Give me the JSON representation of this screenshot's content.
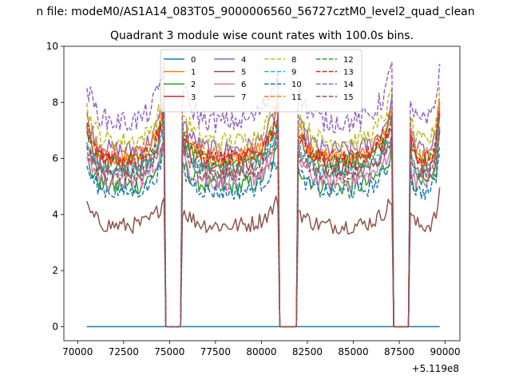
{
  "chart_data": {
    "type": "line",
    "suptitle": "n file: modeM0/AS1A14_083T05_9000006560_56727cztM0_level2_quad_clean",
    "title": "Quadrant 3 module wise count rates with 100.0s bins.",
    "xlabel": "",
    "ylabel": "",
    "x_offset_label": "+5.119e8",
    "xlim": [
      69250,
      90800
    ],
    "ylim": [
      -0.5,
      10
    ],
    "xticks": [
      70000,
      72500,
      75000,
      77500,
      80000,
      82500,
      85000,
      87500,
      90000
    ],
    "xtick_labels": [
      "70000",
      "72500",
      "75000",
      "77500",
      "80000",
      "82500",
      "85000",
      "87500",
      "90000"
    ],
    "yticks": [
      0,
      2,
      4,
      6,
      8,
      10
    ],
    "ytick_labels": [
      "0",
      "2",
      "4",
      "6",
      "8",
      "10"
    ],
    "time_range": [
      70500,
      89700
    ],
    "bin_seconds": 100,
    "gaps": [
      [
        74750,
        75650
      ],
      [
        81000,
        81900
      ],
      [
        87200,
        88050
      ]
    ],
    "legend_location": "upper center",
    "legend_columns": 4,
    "series": [
      {
        "name": "0",
        "color": "#1f77b4",
        "style": "solid",
        "level": 0.0,
        "noise": 0.0
      },
      {
        "name": "1",
        "color": "#ff7f0e",
        "style": "solid",
        "level": 6.0,
        "noise": 0.35
      },
      {
        "name": "2",
        "color": "#2ca02c",
        "style": "solid",
        "level": 5.0,
        "noise": 0.35
      },
      {
        "name": "3",
        "color": "#d62728",
        "style": "solid",
        "level": 5.8,
        "noise": 0.4
      },
      {
        "name": "4",
        "color": "#9467bd",
        "style": "solid",
        "level": 6.3,
        "noise": 0.35
      },
      {
        "name": "5",
        "color": "#8c564b",
        "style": "solid",
        "level": 3.6,
        "noise": 0.3
      },
      {
        "name": "6",
        "color": "#e377c2",
        "style": "solid",
        "level": 5.2,
        "noise": 0.35
      },
      {
        "name": "7",
        "color": "#7f7f7f",
        "style": "solid",
        "level": 5.5,
        "noise": 0.3
      },
      {
        "name": "8",
        "color": "#bcbd22",
        "style": "dashed",
        "level": 6.6,
        "noise": 0.35
      },
      {
        "name": "9",
        "color": "#17becf",
        "style": "dashed",
        "level": 5.6,
        "noise": 0.3
      },
      {
        "name": "10",
        "color": "#1f77b4",
        "style": "dashed",
        "level": 4.8,
        "noise": 0.3
      },
      {
        "name": "11",
        "color": "#ff7f0e",
        "style": "dashed",
        "level": 6.1,
        "noise": 0.35
      },
      {
        "name": "12",
        "color": "#2ca02c",
        "style": "dashed",
        "level": 5.9,
        "noise": 0.3
      },
      {
        "name": "13",
        "color": "#d62728",
        "style": "dashed",
        "level": 6.0,
        "noise": 0.3
      },
      {
        "name": "14",
        "color": "#9467bd",
        "style": "dashed",
        "level": 7.3,
        "noise": 0.4
      },
      {
        "name": "15",
        "color": "#8c564b",
        "style": "dashed",
        "level": 5.4,
        "noise": 0.3
      }
    ]
  }
}
